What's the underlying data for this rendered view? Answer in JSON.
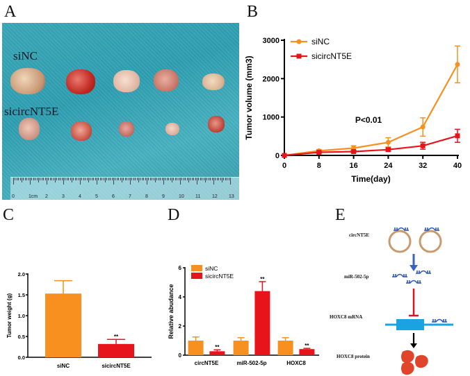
{
  "panels": {
    "A": {
      "letter": "A",
      "label_top": "siNC",
      "label_bottom": "sicircNT5E",
      "ruler_labels": [
        "0",
        "1cm",
        "2",
        "3",
        "4",
        "5",
        "6",
        "7",
        "8",
        "9",
        "10",
        "11",
        "12",
        "13"
      ]
    },
    "B": {
      "letter": "B"
    },
    "C": {
      "letter": "C"
    },
    "D": {
      "letter": "D"
    },
    "E": {
      "letter": "E",
      "labels": {
        "circ": "circNT5E",
        "mir": "miR-502-5p",
        "mrna": "HOXC8 mRNA",
        "protein": "HOXC8 protein"
      }
    }
  },
  "colors": {
    "siNC": "#f7901e",
    "sicircNT5E": "#e8141c",
    "mrna": "#1aa3e0",
    "mir": "#2b58b8",
    "circ": "#c89a6e",
    "inhibit": "#d9141c",
    "protein": "#e0452c"
  },
  "chart_data": [
    {
      "id": "B",
      "type": "line",
      "title": "",
      "xlabel": "Time(day)",
      "ylabel": "Tumor volume (mm3)",
      "x": [
        0,
        8,
        16,
        24,
        32,
        40
      ],
      "xticks": [
        "0",
        "8",
        "16",
        "24",
        "32",
        "40"
      ],
      "yticks": [
        "0",
        "1000",
        "2000",
        "3000"
      ],
      "xlim": [
        0,
        40
      ],
      "ylim": [
        0,
        3000
      ],
      "annotation": "P<0.01",
      "legend": "top-left",
      "series": [
        {
          "name": "siNC",
          "values": [
            0,
            120,
            190,
            340,
            740,
            2370
          ],
          "errors": [
            0,
            30,
            60,
            120,
            240,
            480
          ],
          "marker": "circle"
        },
        {
          "name": "sicircNT5E",
          "values": [
            0,
            80,
            100,
            150,
            250,
            510
          ],
          "errors": [
            0,
            20,
            30,
            40,
            90,
            170
          ],
          "marker": "square"
        }
      ]
    },
    {
      "id": "C",
      "type": "bar",
      "ylabel": "Tumor  weight (g)",
      "categories": [
        "siNC",
        "sicircNT5E"
      ],
      "values": [
        1.53,
        0.32
      ],
      "errors": [
        0.31,
        0.11
      ],
      "significance": [
        "",
        "**"
      ],
      "yticks": [
        "0.0",
        "0.5",
        "1.0",
        "1.5",
        "2.0"
      ],
      "ylim": [
        0,
        2.0
      ]
    },
    {
      "id": "D",
      "type": "bar",
      "ylabel": "Relative abudance",
      "categories": [
        "circNT5E",
        "miR-502-5p",
        "HOXC8"
      ],
      "yticks": [
        "0",
        "2",
        "4",
        "6"
      ],
      "ylim": [
        0,
        6
      ],
      "legend": "top-left",
      "series": [
        {
          "name": "siNC",
          "values": [
            1.0,
            1.0,
            1.0
          ],
          "errors": [
            0.25,
            0.2,
            0.2
          ],
          "significance": [
            "",
            "",
            ""
          ]
        },
        {
          "name": "sicircNT5E",
          "values": [
            0.27,
            4.4,
            0.42
          ],
          "errors": [
            0.1,
            0.65,
            0.05
          ],
          "significance": [
            "**",
            "**",
            "**"
          ]
        }
      ]
    }
  ]
}
